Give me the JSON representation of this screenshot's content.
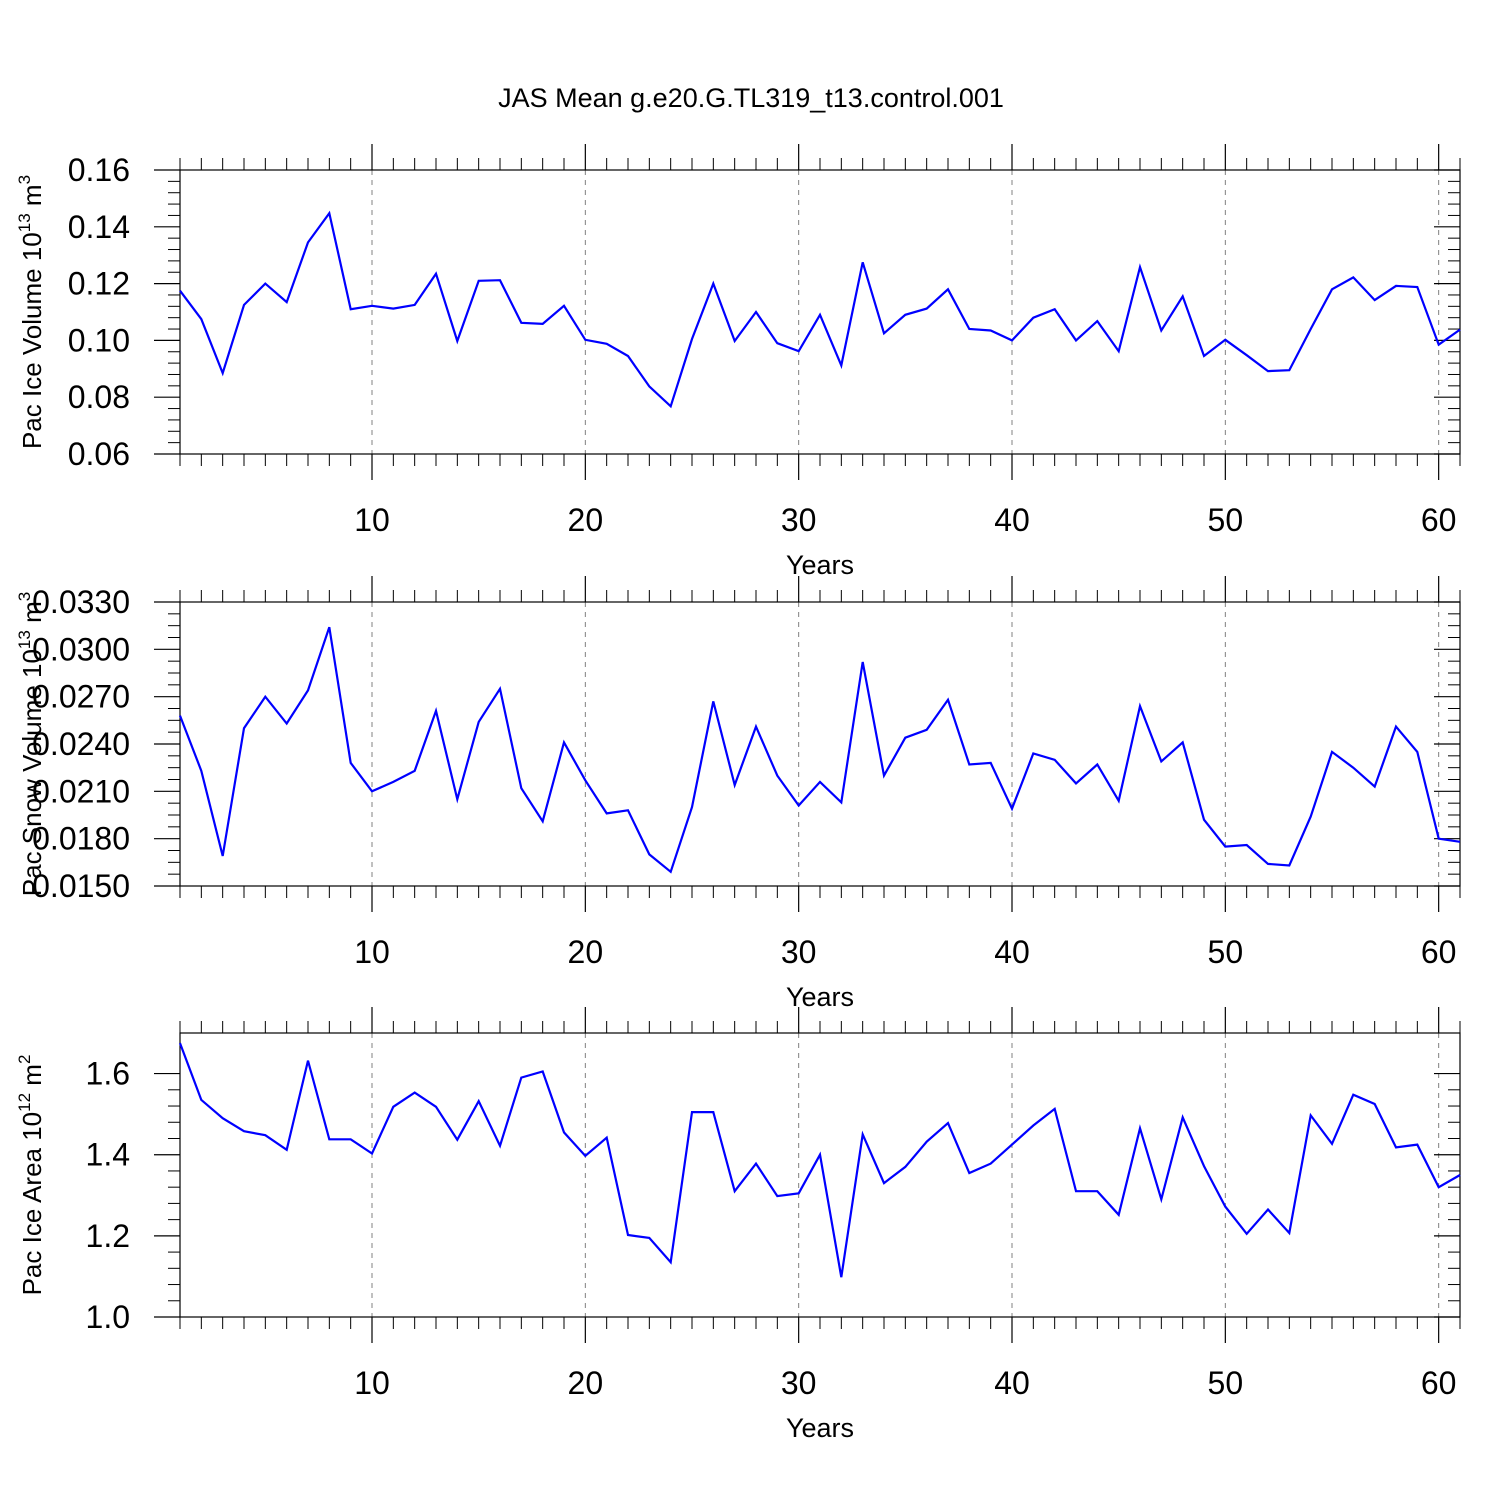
{
  "title": "JAS Mean g.e20.G.TL319_t13.control.001",
  "colors": {
    "series": "#0000ff",
    "axis": "#000000",
    "grid": "#808080"
  },
  "chart_data": [
    {
      "type": "line",
      "ylabel": {
        "prefix": "Pac Ice Volume 10",
        "exp": "13",
        "unit": " m",
        "unit_exp": "3"
      },
      "xlabel": "Years",
      "xlim": [
        1,
        61
      ],
      "ylim": [
        0.06,
        0.16
      ],
      "xticks": [
        10,
        20,
        30,
        40,
        50,
        60
      ],
      "yticks": [
        "0.06",
        "0.08",
        "0.10",
        "0.12",
        "0.14",
        "0.16"
      ],
      "grid": "vertical dashed at major x ticks",
      "x": [
        1,
        2,
        3,
        4,
        5,
        6,
        7,
        8,
        9,
        10,
        11,
        12,
        13,
        14,
        15,
        16,
        17,
        18,
        19,
        20,
        21,
        22,
        23,
        24,
        25,
        26,
        27,
        28,
        29,
        30,
        31,
        32,
        33,
        34,
        35,
        36,
        37,
        38,
        39,
        40,
        41,
        42,
        43,
        44,
        45,
        46,
        47,
        48,
        49,
        50,
        51,
        52,
        53,
        54,
        55,
        56,
        57,
        58,
        59,
        60,
        61
      ],
      "values": [
        0.1175,
        0.1075,
        0.0885,
        0.1125,
        0.12,
        0.1135,
        0.1345,
        0.1448,
        0.111,
        0.1122,
        0.1112,
        0.1125,
        0.1235,
        0.0998,
        0.121,
        0.1212,
        0.1062,
        0.1058,
        0.1122,
        0.1002,
        0.0988,
        0.0945,
        0.0838,
        0.0768,
        0.1005,
        0.12,
        0.0998,
        0.11,
        0.099,
        0.0962,
        0.109,
        0.0912,
        0.1275,
        0.1025,
        0.109,
        0.1112,
        0.118,
        0.104,
        0.1035,
        0.1,
        0.108,
        0.111,
        0.1,
        0.1068,
        0.0962,
        0.1258,
        0.1035,
        0.1155,
        0.0945,
        0.1002,
        0.0948,
        0.0892,
        0.0895,
        0.104,
        0.118,
        0.1222,
        0.1142,
        0.1192,
        0.1188,
        0.0985,
        0.1038
      ]
    },
    {
      "type": "line",
      "ylabel": {
        "prefix": "Pac Snow Volume 10",
        "exp": "13",
        "unit": " m",
        "unit_exp": "3"
      },
      "xlabel": "Years",
      "xlim": [
        1,
        61
      ],
      "ylim": [
        0.015,
        0.033
      ],
      "xticks": [
        10,
        20,
        30,
        40,
        50,
        60
      ],
      "yticks": [
        "0.0150",
        "0.0180",
        "0.0210",
        "0.0240",
        "0.0270",
        "0.0300",
        "0.0330"
      ],
      "grid": "vertical dashed at major x ticks",
      "x": [
        1,
        2,
        3,
        4,
        5,
        6,
        7,
        8,
        9,
        10,
        11,
        12,
        13,
        14,
        15,
        16,
        17,
        18,
        19,
        20,
        21,
        22,
        23,
        24,
        25,
        26,
        27,
        28,
        29,
        30,
        31,
        32,
        33,
        34,
        35,
        36,
        37,
        38,
        39,
        40,
        41,
        42,
        43,
        44,
        45,
        46,
        47,
        48,
        49,
        50,
        51,
        52,
        53,
        54,
        55,
        56,
        57,
        58,
        59,
        60,
        61
      ],
      "values": [
        0.0258,
        0.0223,
        0.0169,
        0.025,
        0.027,
        0.0253,
        0.0274,
        0.0314,
        0.0228,
        0.021,
        0.0216,
        0.0223,
        0.0261,
        0.0205,
        0.0254,
        0.0275,
        0.0212,
        0.0191,
        0.0241,
        0.0217,
        0.0196,
        0.0198,
        0.017,
        0.0159,
        0.02,
        0.0267,
        0.0214,
        0.0251,
        0.022,
        0.0201,
        0.0216,
        0.0203,
        0.0292,
        0.022,
        0.0244,
        0.0249,
        0.0268,
        0.0227,
        0.0228,
        0.0199,
        0.0234,
        0.023,
        0.0215,
        0.0227,
        0.0204,
        0.0264,
        0.0229,
        0.0241,
        0.0192,
        0.0175,
        0.0176,
        0.0164,
        0.0163,
        0.0194,
        0.0235,
        0.0225,
        0.0213,
        0.0251,
        0.0235,
        0.018,
        0.0178
      ]
    },
    {
      "type": "line",
      "ylabel": {
        "prefix": "Pac Ice Area 10",
        "exp": "12",
        "unit": " m",
        "unit_exp": "2"
      },
      "xlabel": "Years",
      "xlim": [
        1,
        61
      ],
      "ylim": [
        1.0,
        1.7
      ],
      "xticks": [
        10,
        20,
        30,
        40,
        50,
        60
      ],
      "yticks": [
        "1.0",
        "1.2",
        "1.4",
        "1.6"
      ],
      "grid": "vertical dashed at major x ticks",
      "x": [
        1,
        2,
        3,
        4,
        5,
        6,
        7,
        8,
        9,
        10,
        11,
        12,
        13,
        14,
        15,
        16,
        17,
        18,
        19,
        20,
        21,
        22,
        23,
        24,
        25,
        26,
        27,
        28,
        29,
        30,
        31,
        32,
        33,
        34,
        35,
        36,
        37,
        38,
        39,
        40,
        41,
        42,
        43,
        44,
        45,
        46,
        47,
        48,
        49,
        50,
        51,
        52,
        53,
        54,
        55,
        56,
        57,
        58,
        59,
        60,
        61
      ],
      "values": [
        1.675,
        1.535,
        1.49,
        1.458,
        1.448,
        1.412,
        1.632,
        1.438,
        1.438,
        1.403,
        1.518,
        1.553,
        1.518,
        1.437,
        1.532,
        1.422,
        1.59,
        1.605,
        1.455,
        1.397,
        1.442,
        1.202,
        1.195,
        1.135,
        1.505,
        1.505,
        1.31,
        1.378,
        1.298,
        1.305,
        1.4,
        1.098,
        1.45,
        1.33,
        1.37,
        1.432,
        1.478,
        1.355,
        1.378,
        1.425,
        1.472,
        1.513,
        1.31,
        1.31,
        1.252,
        1.465,
        1.29,
        1.492,
        1.372,
        1.272,
        1.205,
        1.265,
        1.207,
        1.497,
        1.427,
        1.548,
        1.525,
        1.418,
        1.425,
        1.32,
        1.35
      ]
    }
  ]
}
